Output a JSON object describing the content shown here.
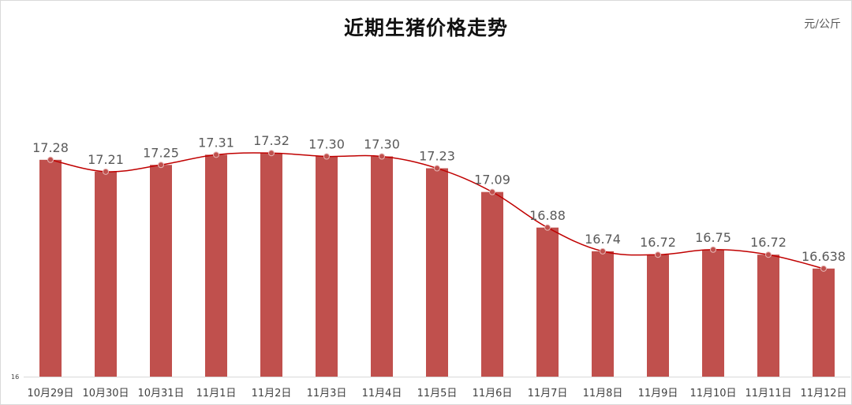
{
  "chart_data": {
    "type": "bar",
    "title": "近期生猪价格走势",
    "unit": "元/公斤",
    "xlabel": "",
    "ylabel": "元/公斤",
    "y_axis_min_label": "16",
    "ylim": [
      16,
      17.6
    ],
    "grid": false,
    "legend": null,
    "categories": [
      "10月29日",
      "10月30日",
      "10月31日",
      "11月1日",
      "11月2日",
      "11月3日",
      "11月4日",
      "11月5日",
      "11月6日",
      "11月7日",
      "11月8日",
      "11月9日",
      "11月10日",
      "11月11日",
      "11月12日"
    ],
    "values": [
      17.28,
      17.21,
      17.25,
      17.31,
      17.32,
      17.3,
      17.3,
      17.23,
      17.09,
      16.88,
      16.74,
      16.72,
      16.75,
      16.72,
      16.638
    ],
    "value_labels": [
      "17.28",
      "17.21",
      "17.25",
      "17.31",
      "17.32",
      "17.30",
      "17.30",
      "17.23",
      "17.09",
      "16.88",
      "16.74",
      "16.72",
      "16.75",
      "16.72",
      "16.638"
    ],
    "overlay": {
      "type": "line",
      "smoothed": true,
      "color": "#C00000",
      "markers": true
    },
    "colors": {
      "bar": "#C0504D",
      "line": "#C00000",
      "marker_fill": "#C0504D",
      "marker_stroke": "#E6B8B7"
    }
  }
}
